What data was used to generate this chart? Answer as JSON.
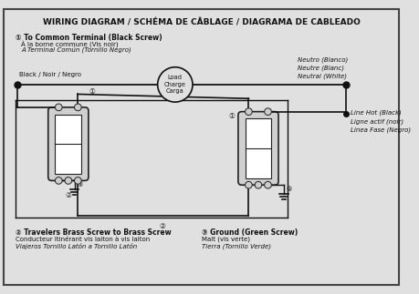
{
  "title": "WIRING DIAGRAM / SCHÉMA DE CÂBLAGE / DIAGRAMA DE CABLEADO",
  "bg_color": "#e0e0e0",
  "border_color": "#444444",
  "line_color": "#111111",
  "switch_fill": "#ffffff",
  "switch_edge": "#222222",
  "annotation1_title": "① To Common Terminal (Black Screw)",
  "annotation1_line2": "À la borne commune (Vis noir)",
  "annotation1_line3": "A Terminal Común (Tornillo Negro)",
  "annotation2_title": "② Travelers Brass Screw to Brass Screw",
  "annotation2_line2": "Conducteur Itinérant vis laiton à vis laiton",
  "annotation2_line3": "Viajeros Tornillo Latón a Tornillo Latón",
  "annotation3_title": "③ Ground (Green Screw)",
  "annotation3_line2": "Malt (vis verte)",
  "annotation3_line3": "Tierra (Tornillo Verde)",
  "label_black": "Black / Noir / Negro",
  "label_neutral": "Neutro (Blanco)\nNeutre (Blanc)\nNeutral (White)",
  "label_linehot": "Line Hot (Black)\nLigne actif (noir)\nLinea Fase (Negro)",
  "label_load": "Load\nCharge\nCarga",
  "num1": "①",
  "num2": "②",
  "num3": "③"
}
